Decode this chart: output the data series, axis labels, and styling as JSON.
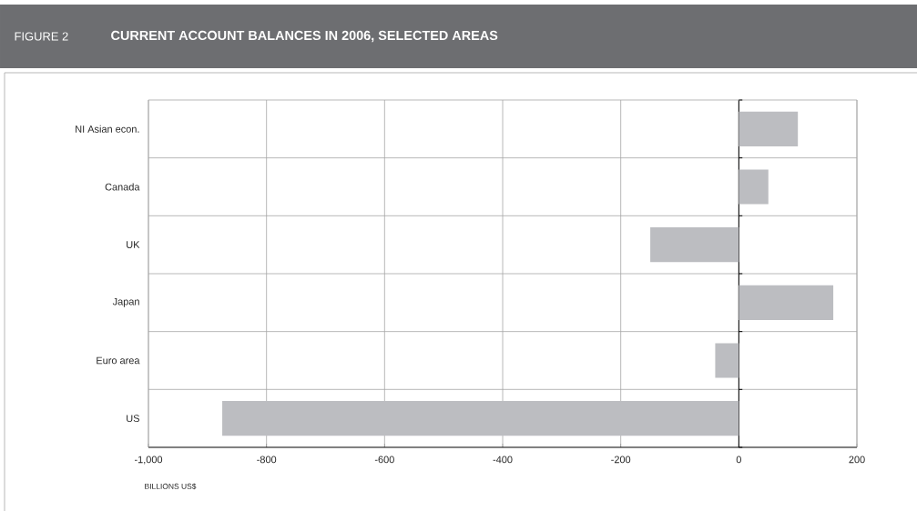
{
  "chart_data": {
    "type": "bar",
    "orientation": "horizontal",
    "title": "CURRENT ACCOUNT BALANCES IN 2006, SELECTED AREAS",
    "subtitle": "FIGURE 2",
    "xlabel": "BILLIONS US$",
    "categories": [
      "NI Asian econ.",
      "Canada",
      "UK",
      "Japan",
      "Euro area",
      "US"
    ],
    "values": [
      100,
      50,
      -150,
      160,
      -40,
      -875
    ],
    "color": "#bcbdc1",
    "xlim": [
      -1000,
      200
    ],
    "xticks": [
      {
        "value": -1000,
        "label": "-1,000"
      },
      -800,
      -600,
      -400,
      -200,
      0,
      200
    ],
    "grid": true
  }
}
